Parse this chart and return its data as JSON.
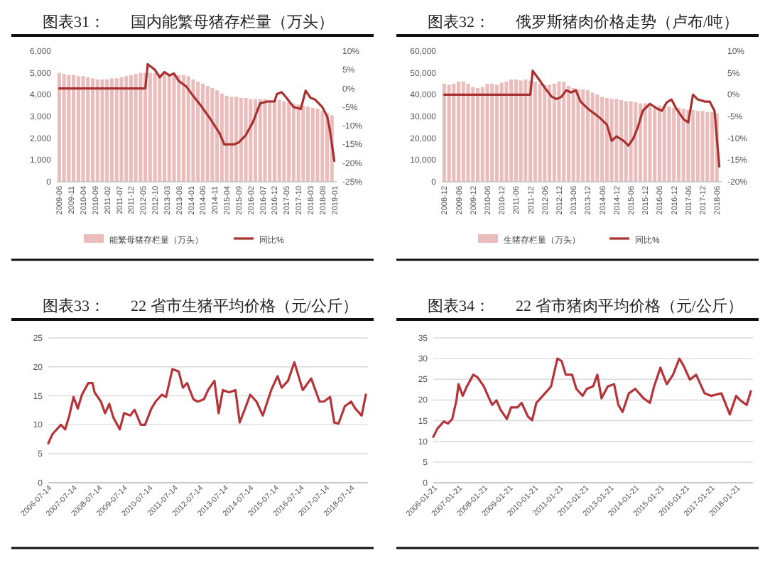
{
  "chart_data": [
    {
      "type": "bar",
      "title": "图表31：",
      "subtitle": "国内能繁母猪存栏量（万头）",
      "xlim": [
        "2009-05",
        "2019-02"
      ],
      "xticks": [
        "2009-06",
        "2009-11",
        "2010-04",
        "2010-09",
        "2011-02",
        "2011-07",
        "2011-12",
        "2012-05",
        "2012-10",
        "2013-03",
        "2013-08",
        "2014-01",
        "2014-06",
        "2014-11",
        "2015-04",
        "2015-09",
        "2016-02",
        "2016-07",
        "2016-12",
        "2017-05",
        "2017-10",
        "2018-03",
        "2018-08",
        "2019-01"
      ],
      "ylim": [
        0,
        6000
      ],
      "yticks": [
        {
          "value": 0,
          "label": "0"
        },
        {
          "value": 1000,
          "label": "1,000"
        },
        {
          "value": 2000,
          "label": "2,000"
        },
        {
          "value": 3000,
          "label": "3,000"
        },
        {
          "value": 4000,
          "label": "4,000"
        },
        {
          "value": 5000,
          "label": "5,000"
        },
        {
          "value": 6000,
          "label": "6,000"
        }
      ],
      "y2lim": [
        -25,
        10
      ],
      "y2ticks": [
        {
          "value": -25,
          "label": "-25%"
        },
        {
          "value": -20,
          "label": "-20%"
        },
        {
          "value": -15,
          "label": "-15%"
        },
        {
          "value": -10,
          "label": "-10%"
        },
        {
          "value": -5,
          "label": "-5%"
        },
        {
          "value": 0,
          "label": "0%"
        },
        {
          "value": 5,
          "label": "5%"
        },
        {
          "value": 10,
          "label": "10%"
        }
      ],
      "legend": "bottom",
      "series": [
        {
          "name": "能繁母猪存栏量（万头）",
          "color": "#ebbcbc",
          "x": [
            "2009-06",
            "2009-08",
            "2009-10",
            "2009-12",
            "2010-02",
            "2010-04",
            "2010-06",
            "2010-08",
            "2010-10",
            "2010-12",
            "2011-02",
            "2011-04",
            "2011-06",
            "2011-08",
            "2011-10",
            "2011-12",
            "2012-02",
            "2012-04",
            "2012-06",
            "2012-08",
            "2012-10",
            "2012-12",
            "2013-02",
            "2013-04",
            "2013-06",
            "2013-08",
            "2013-10",
            "2013-12",
            "2014-02",
            "2014-04",
            "2014-06",
            "2014-08",
            "2014-10",
            "2014-12",
            "2015-02",
            "2015-04",
            "2015-06",
            "2015-08",
            "2015-10",
            "2015-12",
            "2016-02",
            "2016-04",
            "2016-06",
            "2016-08",
            "2016-10",
            "2016-12",
            "2017-02",
            "2017-04",
            "2017-06",
            "2017-08",
            "2017-10",
            "2017-12",
            "2018-02",
            "2018-04",
            "2018-06",
            "2018-08",
            "2018-10",
            "2018-12"
          ],
          "values": [
            5000,
            4950,
            4900,
            4900,
            4850,
            4850,
            4800,
            4750,
            4700,
            4700,
            4700,
            4750,
            4750,
            4800,
            4850,
            4900,
            4950,
            5000,
            5000,
            5000,
            5000,
            4950,
            4950,
            4950,
            4950,
            4900,
            4900,
            4850,
            4700,
            4600,
            4500,
            4400,
            4300,
            4200,
            4050,
            3950,
            3900,
            3900,
            3850,
            3850,
            3800,
            3800,
            3800,
            3800,
            3750,
            3750,
            3750,
            3700,
            3650,
            3600,
            3550,
            3500,
            3450,
            3400,
            3350,
            3250,
            3150,
            3050
          ]
        },
        {
          "name": "同比%",
          "type": "line",
          "axis": "y2",
          "color": "#a8312f",
          "x": [
            "2009-06",
            "2012-06",
            "2012-07",
            "2012-10",
            "2012-12",
            "2013-02",
            "2013-04",
            "2013-06",
            "2013-08",
            "2013-11",
            "2014-02",
            "2014-05",
            "2014-09",
            "2015-01",
            "2015-03",
            "2015-07",
            "2015-09",
            "2015-12",
            "2016-03",
            "2016-06",
            "2016-09",
            "2016-12",
            "2017-01",
            "2017-03",
            "2017-05",
            "2017-08",
            "2017-11",
            "2018-01",
            "2018-03",
            "2018-05",
            "2018-08",
            "2018-10",
            "2018-11",
            "2019-01"
          ],
          "values": [
            0,
            0,
            6.5,
            5,
            3,
            4.4,
            3.5,
            4,
            2,
            0.6,
            -2,
            -4.4,
            -8,
            -12,
            -15,
            -15,
            -14.5,
            -12.5,
            -9,
            -4,
            -3.5,
            -3.5,
            -1.5,
            -1,
            -2.5,
            -5,
            -5.5,
            -0.6,
            -2.5,
            -3,
            -5,
            -7.5,
            -10.6,
            -19.4
          ]
        }
      ]
    },
    {
      "type": "bar",
      "title": "图表32：",
      "subtitle": "俄罗斯猪肉价格走势（卢布/吨）",
      "xlim": [
        "2008-11",
        "2018-08"
      ],
      "xticks": [
        "2008-12",
        "2009-06",
        "2009-12",
        "2010-06",
        "2010-12",
        "2011-06",
        "2011-12",
        "2012-06",
        "2012-12",
        "2013-06",
        "2013-12",
        "2014-06",
        "2014-12",
        "2015-06",
        "2015-12",
        "2016-06",
        "2016-12",
        "2017-06",
        "2017-12",
        "2018-06"
      ],
      "ylim": [
        0,
        60000
      ],
      "yticks": [
        {
          "value": 0,
          "label": "0"
        },
        {
          "value": 10000,
          "label": "10,000"
        },
        {
          "value": 20000,
          "label": "20,000"
        },
        {
          "value": 30000,
          "label": "30,000"
        },
        {
          "value": 40000,
          "label": "40,000"
        },
        {
          "value": 50000,
          "label": "50,000"
        },
        {
          "value": 60000,
          "label": "60,000"
        }
      ],
      "y2lim": [
        -20,
        10
      ],
      "y2ticks": [
        {
          "value": -20,
          "label": "-20%"
        },
        {
          "value": -15,
          "label": "-15%"
        },
        {
          "value": -10,
          "label": "-10%"
        },
        {
          "value": -5,
          "label": "-5%"
        },
        {
          "value": 0,
          "label": "0%"
        },
        {
          "value": 5,
          "label": "5%"
        },
        {
          "value": 10,
          "label": "10%"
        }
      ],
      "legend": "bottom",
      "series": [
        {
          "name": "生猪存栏量（万头）",
          "color": "#ebbcbc",
          "x": [
            "2008-12",
            "2009-02",
            "2009-04",
            "2009-06",
            "2009-08",
            "2009-10",
            "2009-12",
            "2010-02",
            "2010-04",
            "2010-06",
            "2010-08",
            "2010-10",
            "2010-12",
            "2011-02",
            "2011-04",
            "2011-06",
            "2011-08",
            "2011-10",
            "2011-12",
            "2012-02",
            "2012-04",
            "2012-06",
            "2012-08",
            "2012-10",
            "2012-12",
            "2013-02",
            "2013-04",
            "2013-06",
            "2013-08",
            "2013-10",
            "2013-12",
            "2014-02",
            "2014-04",
            "2014-06",
            "2014-08",
            "2014-10",
            "2014-12",
            "2015-02",
            "2015-04",
            "2015-06",
            "2015-08",
            "2015-10",
            "2015-12",
            "2016-02",
            "2016-04",
            "2016-06",
            "2016-08",
            "2016-10",
            "2016-12",
            "2017-02",
            "2017-04",
            "2017-06",
            "2017-08",
            "2017-10",
            "2017-12",
            "2018-02",
            "2018-04",
            "2018-06"
          ],
          "values": [
            45000,
            44500,
            45000,
            46000,
            46000,
            45000,
            43500,
            43000,
            43500,
            45000,
            45000,
            44500,
            45500,
            46000,
            47000,
            47000,
            46500,
            47000,
            46500,
            46000,
            45000,
            44500,
            44500,
            45000,
            46000,
            46000,
            44000,
            43000,
            42500,
            42500,
            42000,
            41000,
            40000,
            39000,
            38500,
            38000,
            38000,
            37500,
            37000,
            37000,
            36500,
            36000,
            36000,
            35500,
            35000,
            35000,
            34500,
            34500,
            34000,
            34000,
            33500,
            33000,
            33000,
            32500,
            32500,
            32000,
            32000,
            31500
          ]
        },
        {
          "name": "同比%",
          "type": "line",
          "axis": "y2",
          "color": "#a8312f",
          "x": [
            "2008-12",
            "2011-12",
            "2012-01",
            "2012-04",
            "2012-06",
            "2012-09",
            "2012-11",
            "2013-01",
            "2013-03",
            "2013-05",
            "2013-07",
            "2013-09",
            "2013-12",
            "2014-05",
            "2014-08",
            "2014-10",
            "2014-12",
            "2015-03",
            "2015-05",
            "2015-07",
            "2015-09",
            "2015-11",
            "2016-02",
            "2016-05",
            "2016-07",
            "2016-09",
            "2016-11",
            "2017-01",
            "2017-04",
            "2017-06",
            "2017-08",
            "2017-10",
            "2018-01",
            "2018-03",
            "2018-05",
            "2018-07"
          ],
          "values": [
            0,
            0,
            5.5,
            3.2,
            1.6,
            -0.5,
            -1,
            -0.5,
            1,
            0.5,
            1,
            -1.6,
            -3.2,
            -5.3,
            -6.9,
            -10.6,
            -9.6,
            -10.6,
            -11.7,
            -10.1,
            -7.4,
            -3.7,
            -2.1,
            -3.2,
            -3.7,
            -1.8,
            -1.1,
            -3.2,
            -5.6,
            -6.4,
            0,
            -1.1,
            -1.6,
            -1.6,
            -3.7,
            -16.5
          ]
        }
      ]
    },
    {
      "type": "line",
      "title": "图表33：",
      "subtitle": "22 省市生猪平均价格（元/公斤）",
      "xlim": [
        "2006-07",
        "2019-03"
      ],
      "xticks": [
        "2006-07-14",
        "2007-07-14",
        "2008-07-14",
        "2009-07-14",
        "2010-07-14",
        "2011-07-14",
        "2012-07-14",
        "2013-07-14",
        "2014-07-14",
        "2015-07-14",
        "2016-07-14",
        "2017-07-14",
        "2018-07-14"
      ],
      "ylim": [
        0,
        25
      ],
      "yticks": [
        0,
        5,
        10,
        15,
        20,
        25
      ],
      "grid": "y",
      "series": [
        {
          "color": "#b5343a",
          "x": [
            "2006-07",
            "2006-09",
            "2006-12",
            "2007-01",
            "2007-03",
            "2007-05",
            "2007-07",
            "2007-09",
            "2007-11",
            "2008-02",
            "2008-04",
            "2008-05",
            "2008-08",
            "2008-10",
            "2008-12",
            "2009-02",
            "2009-05",
            "2009-07",
            "2009-10",
            "2009-12",
            "2010-03",
            "2010-05",
            "2010-08",
            "2010-10",
            "2011-01",
            "2011-03",
            "2011-06",
            "2011-09",
            "2011-11",
            "2012-01",
            "2012-04",
            "2012-06",
            "2012-09",
            "2012-11",
            "2013-02",
            "2013-04",
            "2013-06",
            "2013-09",
            "2013-12",
            "2014-02",
            "2014-05",
            "2014-07",
            "2014-10",
            "2015-01",
            "2015-05",
            "2015-08",
            "2015-10",
            "2016-01",
            "2016-04",
            "2016-06",
            "2016-08",
            "2016-12",
            "2017-04",
            "2017-06",
            "2017-09",
            "2017-11",
            "2018-01",
            "2018-04",
            "2018-07",
            "2018-09",
            "2018-12",
            "2019-02"
          ],
          "values": [
            6.8,
            8.4,
            9.6,
            10,
            9.2,
            11.6,
            14.8,
            12.8,
            15.2,
            17.2,
            17.2,
            15.6,
            14,
            12,
            13.6,
            11.2,
            9.2,
            12,
            11.6,
            12.6,
            10,
            10,
            12.8,
            14,
            15.2,
            14.8,
            19.6,
            19.2,
            16.4,
            17.2,
            14.4,
            14,
            14.4,
            16,
            17.6,
            12,
            16,
            15.6,
            16,
            10.4,
            13.2,
            15.2,
            14,
            11.6,
            16,
            18.4,
            16.4,
            17.6,
            20.8,
            18.4,
            16,
            18,
            14,
            14,
            14.8,
            10.4,
            10.2,
            13.2,
            14,
            12.8,
            11.6,
            15.2
          ]
        }
      ]
    },
    {
      "type": "line",
      "title": "图表34：",
      "subtitle": "22 省市猪肉平均价格（元/公斤）",
      "xlim": [
        "2006-01",
        "2018-09"
      ],
      "xticks": [
        "2006-01-21",
        "2007-01-21",
        "2008-01-21",
        "2009-01-21",
        "2010-01-21",
        "2011-01-21",
        "2012-01-21",
        "2013-01-21",
        "2014-01-21",
        "2015-01-21",
        "2016-01-21",
        "2017-01-21",
        "2018-01-21"
      ],
      "ylim": [
        0,
        35
      ],
      "yticks": [
        0,
        5,
        10,
        15,
        20,
        25,
        30,
        35
      ],
      "grid": "y",
      "series": [
        {
          "color": "#b5343a",
          "x": [
            "2006-01",
            "2006-03",
            "2006-06",
            "2006-08",
            "2006-10",
            "2006-12",
            "2007-01",
            "2007-03",
            "2007-05",
            "2007-08",
            "2007-10",
            "2008-01",
            "2008-03",
            "2008-05",
            "2008-07",
            "2008-09",
            "2008-12",
            "2009-02",
            "2009-05",
            "2009-07",
            "2009-10",
            "2009-12",
            "2010-02",
            "2010-04",
            "2010-07",
            "2010-09",
            "2010-12",
            "2011-02",
            "2011-04",
            "2011-07",
            "2011-09",
            "2011-12",
            "2012-02",
            "2012-05",
            "2012-07",
            "2012-09",
            "2012-12",
            "2013-03",
            "2013-05",
            "2013-07",
            "2013-10",
            "2014-01",
            "2014-05",
            "2014-08",
            "2014-10",
            "2015-01",
            "2015-04",
            "2015-07",
            "2015-10",
            "2015-12",
            "2016-03",
            "2016-06",
            "2016-10",
            "2017-01",
            "2017-06",
            "2017-10",
            "2018-01",
            "2018-03",
            "2018-06",
            "2018-08"
          ],
          "values": [
            11.1,
            13.1,
            14.8,
            14.3,
            15.4,
            19.9,
            23.8,
            21,
            23.3,
            26.1,
            25.5,
            23.3,
            21,
            18.8,
            19.9,
            17.6,
            15.4,
            18.2,
            18.2,
            19.3,
            16,
            15.1,
            19.3,
            20.4,
            22.1,
            23.3,
            30,
            29.4,
            26.1,
            26.1,
            22.7,
            21,
            22.7,
            23.3,
            26.1,
            20.4,
            23.3,
            23.8,
            18.8,
            17.1,
            21.6,
            22.7,
            20.4,
            19.3,
            23.3,
            27.8,
            23.8,
            26.1,
            30,
            28.3,
            24.9,
            26.1,
            21.6,
            21,
            21.6,
            16.5,
            21,
            19.9,
            18.8,
            22.1
          ]
        }
      ]
    }
  ]
}
